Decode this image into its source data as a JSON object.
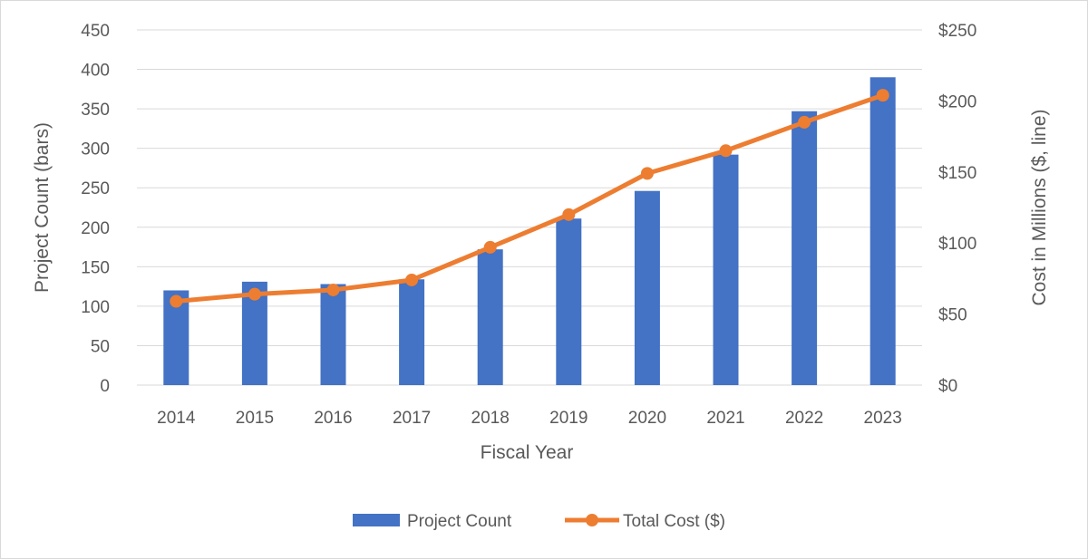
{
  "chart_data": {
    "type": "bar",
    "categories": [
      "2014",
      "2015",
      "2016",
      "2017",
      "2018",
      "2019",
      "2020",
      "2021",
      "2022",
      "2023"
    ],
    "series": [
      {
        "name": "Project Count",
        "type": "bar",
        "axis": "left",
        "color": "#4472C4",
        "values": [
          120,
          131,
          128,
          134,
          172,
          211,
          246,
          292,
          347,
          390
        ]
      },
      {
        "name": "Total Cost ($)",
        "type": "line",
        "axis": "right",
        "color": "#ED7D31",
        "values": [
          59,
          64,
          67,
          74,
          97,
          120,
          149,
          165,
          185,
          204
        ]
      }
    ],
    "xlabel": "Fiscal Year",
    "ylabel": "Project Count (bars)",
    "y2label": "Cost in Millions ($, line)",
    "ylim": [
      0,
      450
    ],
    "y2lim": [
      0,
      250
    ],
    "yticks": [
      "0",
      "50",
      "100",
      "150",
      "200",
      "250",
      "300",
      "350",
      "400",
      "450"
    ],
    "y2ticks": [
      "$0",
      "$50",
      "$100",
      "$150",
      "$200",
      "$250"
    ],
    "grid": true,
    "legend_position": "bottom"
  }
}
